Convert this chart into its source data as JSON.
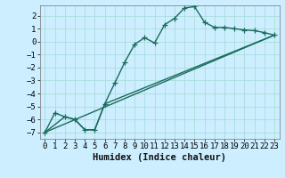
{
  "xlabel": "Humidex (Indice chaleur)",
  "background_color": "#cceeff",
  "line_color": "#1a6b5a",
  "grid_color": "#aadddd",
  "xlim": [
    -0.5,
    23.5
  ],
  "ylim": [
    -7.5,
    2.8
  ],
  "xticks": [
    0,
    1,
    2,
    3,
    4,
    5,
    6,
    7,
    8,
    9,
    10,
    11,
    12,
    13,
    14,
    15,
    16,
    17,
    18,
    19,
    20,
    21,
    22,
    23
  ],
  "yticks": [
    -7,
    -6,
    -5,
    -4,
    -3,
    -2,
    -1,
    0,
    1,
    2
  ],
  "curve1_x": [
    0,
    1,
    2,
    3,
    4,
    5,
    6,
    7,
    8,
    9,
    10,
    11,
    12,
    13,
    14,
    15,
    16,
    17,
    18,
    19,
    20,
    21,
    22,
    23
  ],
  "curve1_y": [
    -7.0,
    -5.5,
    -5.8,
    -6.0,
    -6.8,
    -6.8,
    -4.8,
    -3.2,
    -1.6,
    -0.2,
    0.3,
    -0.1,
    1.3,
    1.8,
    2.6,
    2.7,
    1.5,
    1.1,
    1.1,
    1.0,
    0.9,
    0.85,
    0.7,
    0.5
  ],
  "curve2_x": [
    0,
    2,
    3,
    4,
    5,
    6,
    23
  ],
  "curve2_y": [
    -7.0,
    -5.8,
    -6.0,
    -6.8,
    -6.8,
    -4.8,
    0.5
  ],
  "curve3_x": [
    0,
    23
  ],
  "curve3_y": [
    -7.0,
    0.5
  ],
  "linewidth": 1.0,
  "markersize": 4,
  "tick_fontsize": 6.5,
  "xlabel_fontsize": 7.5
}
